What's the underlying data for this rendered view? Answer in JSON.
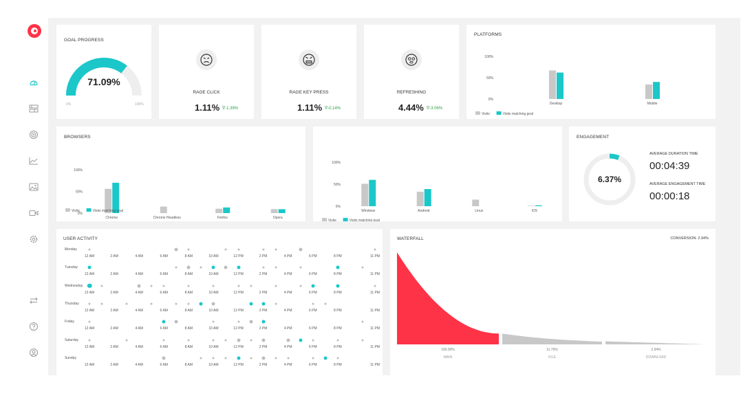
{
  "colors": {
    "accent": "#1cc7c9",
    "gray": "#c8c8c8",
    "brand": "#ff3347",
    "positive": "#2ea043"
  },
  "sidebar": {
    "logo": "brand-logo",
    "items": [
      {
        "icon": "dashboard-icon",
        "active": true
      },
      {
        "icon": "recordings-icon"
      },
      {
        "icon": "target-icon"
      },
      {
        "icon": "chart-icon"
      },
      {
        "icon": "heatmap-icon"
      },
      {
        "icon": "video-icon"
      },
      {
        "icon": "settings-icon"
      }
    ],
    "bottom_items": [
      {
        "icon": "switch-icon"
      },
      {
        "icon": "help-icon"
      },
      {
        "icon": "user-icon"
      }
    ]
  },
  "goal_progress": {
    "title": "GOAL PROGRESS",
    "value": "71.09%",
    "fraction": 0.7109,
    "min_label": "0%",
    "max_label": "100%"
  },
  "metrics": [
    {
      "label": "RAGE CLICK",
      "value": "1.11%",
      "delta": "-1.39%",
      "icon": "angry-face-icon"
    },
    {
      "label": "RAGE KEY PRESS",
      "value": "1.11%",
      "delta": "-0.14%",
      "icon": "furious-face-icon"
    },
    {
      "label": "REFRESHING",
      "value": "4.44%",
      "delta": "-3.06%",
      "icon": "dizzy-face-icon"
    }
  ],
  "platforms": {
    "title": "PLATFORMS",
    "chart_data": {
      "type": "bar",
      "categories": [
        "Desktop",
        "Mobile"
      ],
      "series": [
        {
          "name": "Visits",
          "values": [
            67,
            34
          ]
        },
        {
          "name": "Visits matching goal",
          "values": [
            62,
            40
          ]
        }
      ],
      "yticks": [
        "100%",
        "50%",
        "0%"
      ],
      "ylim": [
        0,
        100
      ]
    }
  },
  "browsers": {
    "title": "BROWSERS",
    "chart_data": {
      "type": "bar",
      "categories": [
        "Chrome",
        "Chrome Headless",
        "Firefox",
        "Opera"
      ],
      "series": [
        {
          "name": "Visits",
          "values": [
            56,
            15,
            10,
            9
          ]
        },
        {
          "name": "Visits matching goal",
          "values": [
            70,
            0,
            13,
            9
          ]
        }
      ],
      "yticks": [
        "100%",
        "50%",
        "0%"
      ],
      "ylim": [
        0,
        100
      ]
    }
  },
  "os": {
    "chart_data": {
      "type": "bar",
      "categories": [
        "Windows",
        "Android",
        "Linux",
        "iOS"
      ],
      "series": [
        {
          "name": "Visits",
          "values": [
            51,
            33,
            15,
            1
          ]
        },
        {
          "name": "Visits matching goal",
          "values": [
            60,
            39,
            0,
            2
          ]
        }
      ],
      "yticks": [
        "100%",
        "50%",
        "0%"
      ],
      "ylim": [
        0,
        100
      ]
    }
  },
  "engagement": {
    "title": "ENGAGEMENT",
    "percent": "6.37%",
    "fraction": 0.0637,
    "avg_duration_label": "AVERAGE DURATION TIME",
    "avg_duration": "00:04:39",
    "avg_engagement_label": "AVERAGE ENGAGEMENT TIME",
    "avg_engagement": "00:00:18"
  },
  "user_activity": {
    "title": "USER ACTIVITY",
    "days": [
      "Monday",
      "Tuesday",
      "Wednesday",
      "Thursday",
      "Friday",
      "Saturday",
      "Sunday"
    ],
    "ticks": [
      "12 AM",
      "2 AM",
      "4 AM",
      "6 AM",
      "8 AM",
      "10 AM",
      "12 PM",
      "2 PM",
      "4 PM",
      "6 PM",
      "8 PM",
      "11 PM"
    ],
    "tick_hours": [
      0,
      2,
      4,
      6,
      8,
      10,
      12,
      14,
      16,
      18,
      20,
      23
    ],
    "points": [
      [
        0,
        0,
        1,
        0
      ],
      [
        0,
        7,
        2,
        0
      ],
      [
        0,
        8,
        1,
        0
      ],
      [
        0,
        11,
        1,
        0
      ],
      [
        0,
        12,
        1,
        0
      ],
      [
        0,
        14,
        1,
        0
      ],
      [
        0,
        15,
        1,
        0
      ],
      [
        0,
        17,
        2,
        0
      ],
      [
        0,
        23,
        1,
        0
      ],
      [
        1,
        0,
        2,
        1
      ],
      [
        1,
        7,
        1,
        0
      ],
      [
        1,
        8,
        2,
        0
      ],
      [
        1,
        9,
        1,
        0
      ],
      [
        1,
        10,
        2,
        1
      ],
      [
        1,
        11,
        2,
        0
      ],
      [
        1,
        12,
        2,
        1
      ],
      [
        1,
        14,
        1,
        0
      ],
      [
        1,
        15,
        1,
        0
      ],
      [
        1,
        17,
        1,
        0
      ],
      [
        1,
        20,
        2,
        1
      ],
      [
        1,
        22,
        1,
        0
      ],
      [
        2,
        0,
        3,
        1
      ],
      [
        2,
        1,
        1,
        0
      ],
      [
        2,
        4,
        2,
        0
      ],
      [
        2,
        5,
        1,
        0
      ],
      [
        2,
        6,
        1,
        0
      ],
      [
        2,
        8,
        1,
        0
      ],
      [
        2,
        10,
        1,
        0
      ],
      [
        2,
        12,
        1,
        0
      ],
      [
        2,
        13,
        1,
        0
      ],
      [
        2,
        15,
        1,
        0
      ],
      [
        2,
        17,
        1,
        0
      ],
      [
        2,
        18,
        2,
        1
      ],
      [
        2,
        20,
        2,
        1
      ],
      [
        2,
        23,
        1,
        0
      ],
      [
        3,
        0,
        1,
        0
      ],
      [
        3,
        1,
        1,
        0
      ],
      [
        3,
        3,
        1,
        0
      ],
      [
        3,
        5,
        1,
        0
      ],
      [
        3,
        7,
        1,
        0
      ],
      [
        3,
        8,
        1,
        0
      ],
      [
        3,
        9,
        2,
        1
      ],
      [
        3,
        10,
        2,
        0
      ],
      [
        3,
        13,
        2,
        1
      ],
      [
        3,
        14,
        2,
        1
      ],
      [
        3,
        15,
        1,
        0
      ],
      [
        3,
        18,
        1,
        0
      ],
      [
        3,
        19,
        1,
        0
      ],
      [
        4,
        0,
        1,
        0
      ],
      [
        4,
        6,
        2,
        1
      ],
      [
        4,
        7,
        2,
        0
      ],
      [
        4,
        10,
        1,
        0
      ],
      [
        4,
        12,
        1,
        0
      ],
      [
        4,
        13,
        2,
        0
      ],
      [
        4,
        14,
        2,
        1
      ],
      [
        4,
        22,
        1,
        0
      ],
      [
        5,
        0,
        1,
        0
      ],
      [
        5,
        3,
        1,
        0
      ],
      [
        5,
        6,
        1,
        0
      ],
      [
        5,
        8,
        1,
        0
      ],
      [
        5,
        10,
        1,
        0
      ],
      [
        5,
        11,
        1,
        0
      ],
      [
        5,
        12,
        2,
        0
      ],
      [
        5,
        13,
        1,
        0
      ],
      [
        5,
        14,
        2,
        0
      ],
      [
        5,
        16,
        2,
        0
      ],
      [
        5,
        17,
        2,
        1
      ],
      [
        5,
        18,
        1,
        0
      ],
      [
        5,
        20,
        1,
        0
      ],
      [
        5,
        22,
        1,
        0
      ],
      [
        6,
        6,
        2,
        0
      ],
      [
        6,
        9,
        1,
        0
      ],
      [
        6,
        10,
        1,
        0
      ],
      [
        6,
        11,
        1,
        0
      ],
      [
        6,
        12,
        2,
        1
      ],
      [
        6,
        13,
        1,
        0
      ],
      [
        6,
        14,
        2,
        0
      ],
      [
        6,
        15,
        1,
        0
      ],
      [
        6,
        16,
        1,
        0
      ],
      [
        6,
        18,
        1,
        0
      ],
      [
        6,
        19,
        2,
        1
      ],
      [
        6,
        20,
        1,
        0
      ]
    ]
  },
  "waterfall": {
    "title": "WATERFALL",
    "conversion_label": "CONVERSION: 2.94%",
    "chart_data": {
      "type": "area",
      "categories": [
        "MAIN",
        "FILE",
        "DOWNLOAD"
      ],
      "values": [
        100,
        11.76,
        2.94
      ],
      "value_labels": [
        "100.00%",
        "11.76%",
        "2.94%"
      ]
    }
  }
}
